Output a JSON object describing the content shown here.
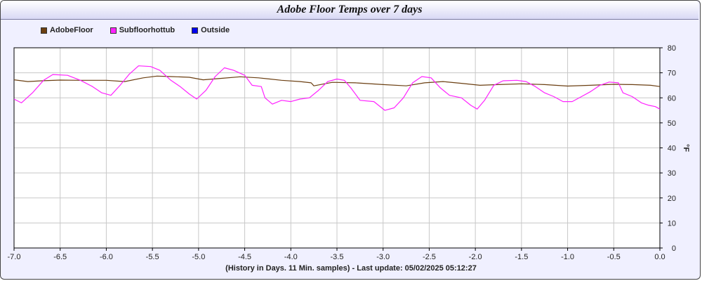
{
  "title": "Adobe Floor Temps over 7 days",
  "footer": "(History in Days. 11 Min. samples) - Last update: 05/02/2025 05:12:27",
  "legend": [
    {
      "name": "AdobeFloor",
      "color": "#6b3f12"
    },
    {
      "name": "Subfloorhottub",
      "color": "#ff22ff"
    },
    {
      "name": "Outside",
      "color": "#0000ee"
    }
  ],
  "chart_data": {
    "type": "line",
    "title": "Adobe Floor Temps over 7 days",
    "xlabel": "(History in Days. 11 Min. samples) - Last update: 05/02/2025 05:12:27",
    "ylabel": "°F",
    "xlim": [
      -7.0,
      0.0
    ],
    "ylim": [
      0,
      80
    ],
    "x_ticks": [
      "-7.0",
      "-6.5",
      "-6.0",
      "-5.5",
      "-5.0",
      "-4.5",
      "-4.0",
      "-3.5",
      "-3.0",
      "-2.5",
      "-2.0",
      "-1.5",
      "-1.0",
      "-0.5",
      "0.0"
    ],
    "y_ticks": [
      "0",
      "10",
      "20",
      "30",
      "40",
      "50",
      "60",
      "70",
      "80"
    ],
    "grid": true,
    "legend_position": "top-left",
    "series": [
      {
        "name": "AdobeFloor",
        "color": "#6b3f12",
        "points": [
          [
            -7.0,
            67.2
          ],
          [
            -6.85,
            66.5
          ],
          [
            -6.7,
            66.8
          ],
          [
            -6.5,
            67.1
          ],
          [
            -6.3,
            67.0
          ],
          [
            -6.0,
            67.0
          ],
          [
            -5.8,
            66.5
          ],
          [
            -5.6,
            68.0
          ],
          [
            -5.45,
            68.7
          ],
          [
            -5.3,
            68.5
          ],
          [
            -5.1,
            68.2
          ],
          [
            -4.95,
            67.2
          ],
          [
            -4.75,
            67.8
          ],
          [
            -4.55,
            68.4
          ],
          [
            -4.35,
            68.0
          ],
          [
            -4.1,
            67.0
          ],
          [
            -3.9,
            66.5
          ],
          [
            -3.78,
            66.0
          ],
          [
            -3.75,
            64.8
          ],
          [
            -3.55,
            66.2
          ],
          [
            -3.3,
            66.0
          ],
          [
            -3.0,
            65.3
          ],
          [
            -2.75,
            64.8
          ],
          [
            -2.55,
            66.0
          ],
          [
            -2.35,
            66.5
          ],
          [
            -2.15,
            65.8
          ],
          [
            -1.95,
            65.0
          ],
          [
            -1.75,
            65.3
          ],
          [
            -1.5,
            65.6
          ],
          [
            -1.25,
            65.3
          ],
          [
            -1.0,
            64.7
          ],
          [
            -0.75,
            65.0
          ],
          [
            -0.5,
            65.4
          ],
          [
            -0.3,
            65.3
          ],
          [
            -0.1,
            65.0
          ],
          [
            0.0,
            64.5
          ]
        ]
      },
      {
        "name": "Subfloorhottub",
        "color": "#ff22ff",
        "points": [
          [
            -7.0,
            59.5
          ],
          [
            -6.92,
            58.0
          ],
          [
            -6.8,
            62.0
          ],
          [
            -6.68,
            67.0
          ],
          [
            -6.58,
            69.3
          ],
          [
            -6.42,
            69.0
          ],
          [
            -6.28,
            67.0
          ],
          [
            -6.15,
            64.5
          ],
          [
            -6.05,
            62.0
          ],
          [
            -5.95,
            61.0
          ],
          [
            -5.85,
            65.0
          ],
          [
            -5.75,
            69.5
          ],
          [
            -5.65,
            72.8
          ],
          [
            -5.52,
            72.5
          ],
          [
            -5.42,
            71.0
          ],
          [
            -5.3,
            67.0
          ],
          [
            -5.2,
            64.5
          ],
          [
            -5.1,
            61.5
          ],
          [
            -5.02,
            59.5
          ],
          [
            -4.92,
            63.0
          ],
          [
            -4.82,
            68.5
          ],
          [
            -4.72,
            72.0
          ],
          [
            -4.62,
            71.0
          ],
          [
            -4.5,
            69.0
          ],
          [
            -4.42,
            65.0
          ],
          [
            -4.32,
            64.5
          ],
          [
            -4.28,
            60.0
          ],
          [
            -4.2,
            57.5
          ],
          [
            -4.1,
            59.0
          ],
          [
            -4.0,
            58.5
          ],
          [
            -3.9,
            59.5
          ],
          [
            -3.8,
            60.0
          ],
          [
            -3.7,
            63.0
          ],
          [
            -3.6,
            66.5
          ],
          [
            -3.5,
            67.5
          ],
          [
            -3.42,
            67.0
          ],
          [
            -3.35,
            64.0
          ],
          [
            -3.25,
            59.0
          ],
          [
            -3.1,
            58.5
          ],
          [
            -2.98,
            55.0
          ],
          [
            -2.88,
            56.0
          ],
          [
            -2.78,
            60.0
          ],
          [
            -2.68,
            66.0
          ],
          [
            -2.58,
            68.5
          ],
          [
            -2.48,
            68.0
          ],
          [
            -2.38,
            64.0
          ],
          [
            -2.28,
            61.0
          ],
          [
            -2.15,
            60.0
          ],
          [
            -2.05,
            57.0
          ],
          [
            -1.98,
            55.5
          ],
          [
            -1.9,
            59.0
          ],
          [
            -1.8,
            65.0
          ],
          [
            -1.7,
            66.8
          ],
          [
            -1.55,
            67.0
          ],
          [
            -1.45,
            66.5
          ],
          [
            -1.35,
            64.5
          ],
          [
            -1.25,
            62.0
          ],
          [
            -1.15,
            60.5
          ],
          [
            -1.05,
            58.5
          ],
          [
            -0.95,
            58.5
          ],
          [
            -0.85,
            60.5
          ],
          [
            -0.75,
            62.5
          ],
          [
            -0.65,
            65.0
          ],
          [
            -0.55,
            66.3
          ],
          [
            -0.45,
            66.0
          ],
          [
            -0.4,
            62.0
          ],
          [
            -0.3,
            60.5
          ],
          [
            -0.2,
            58.0
          ],
          [
            -0.12,
            57.0
          ],
          [
            -0.05,
            56.5
          ],
          [
            0.0,
            55.5
          ]
        ]
      }
    ]
  }
}
